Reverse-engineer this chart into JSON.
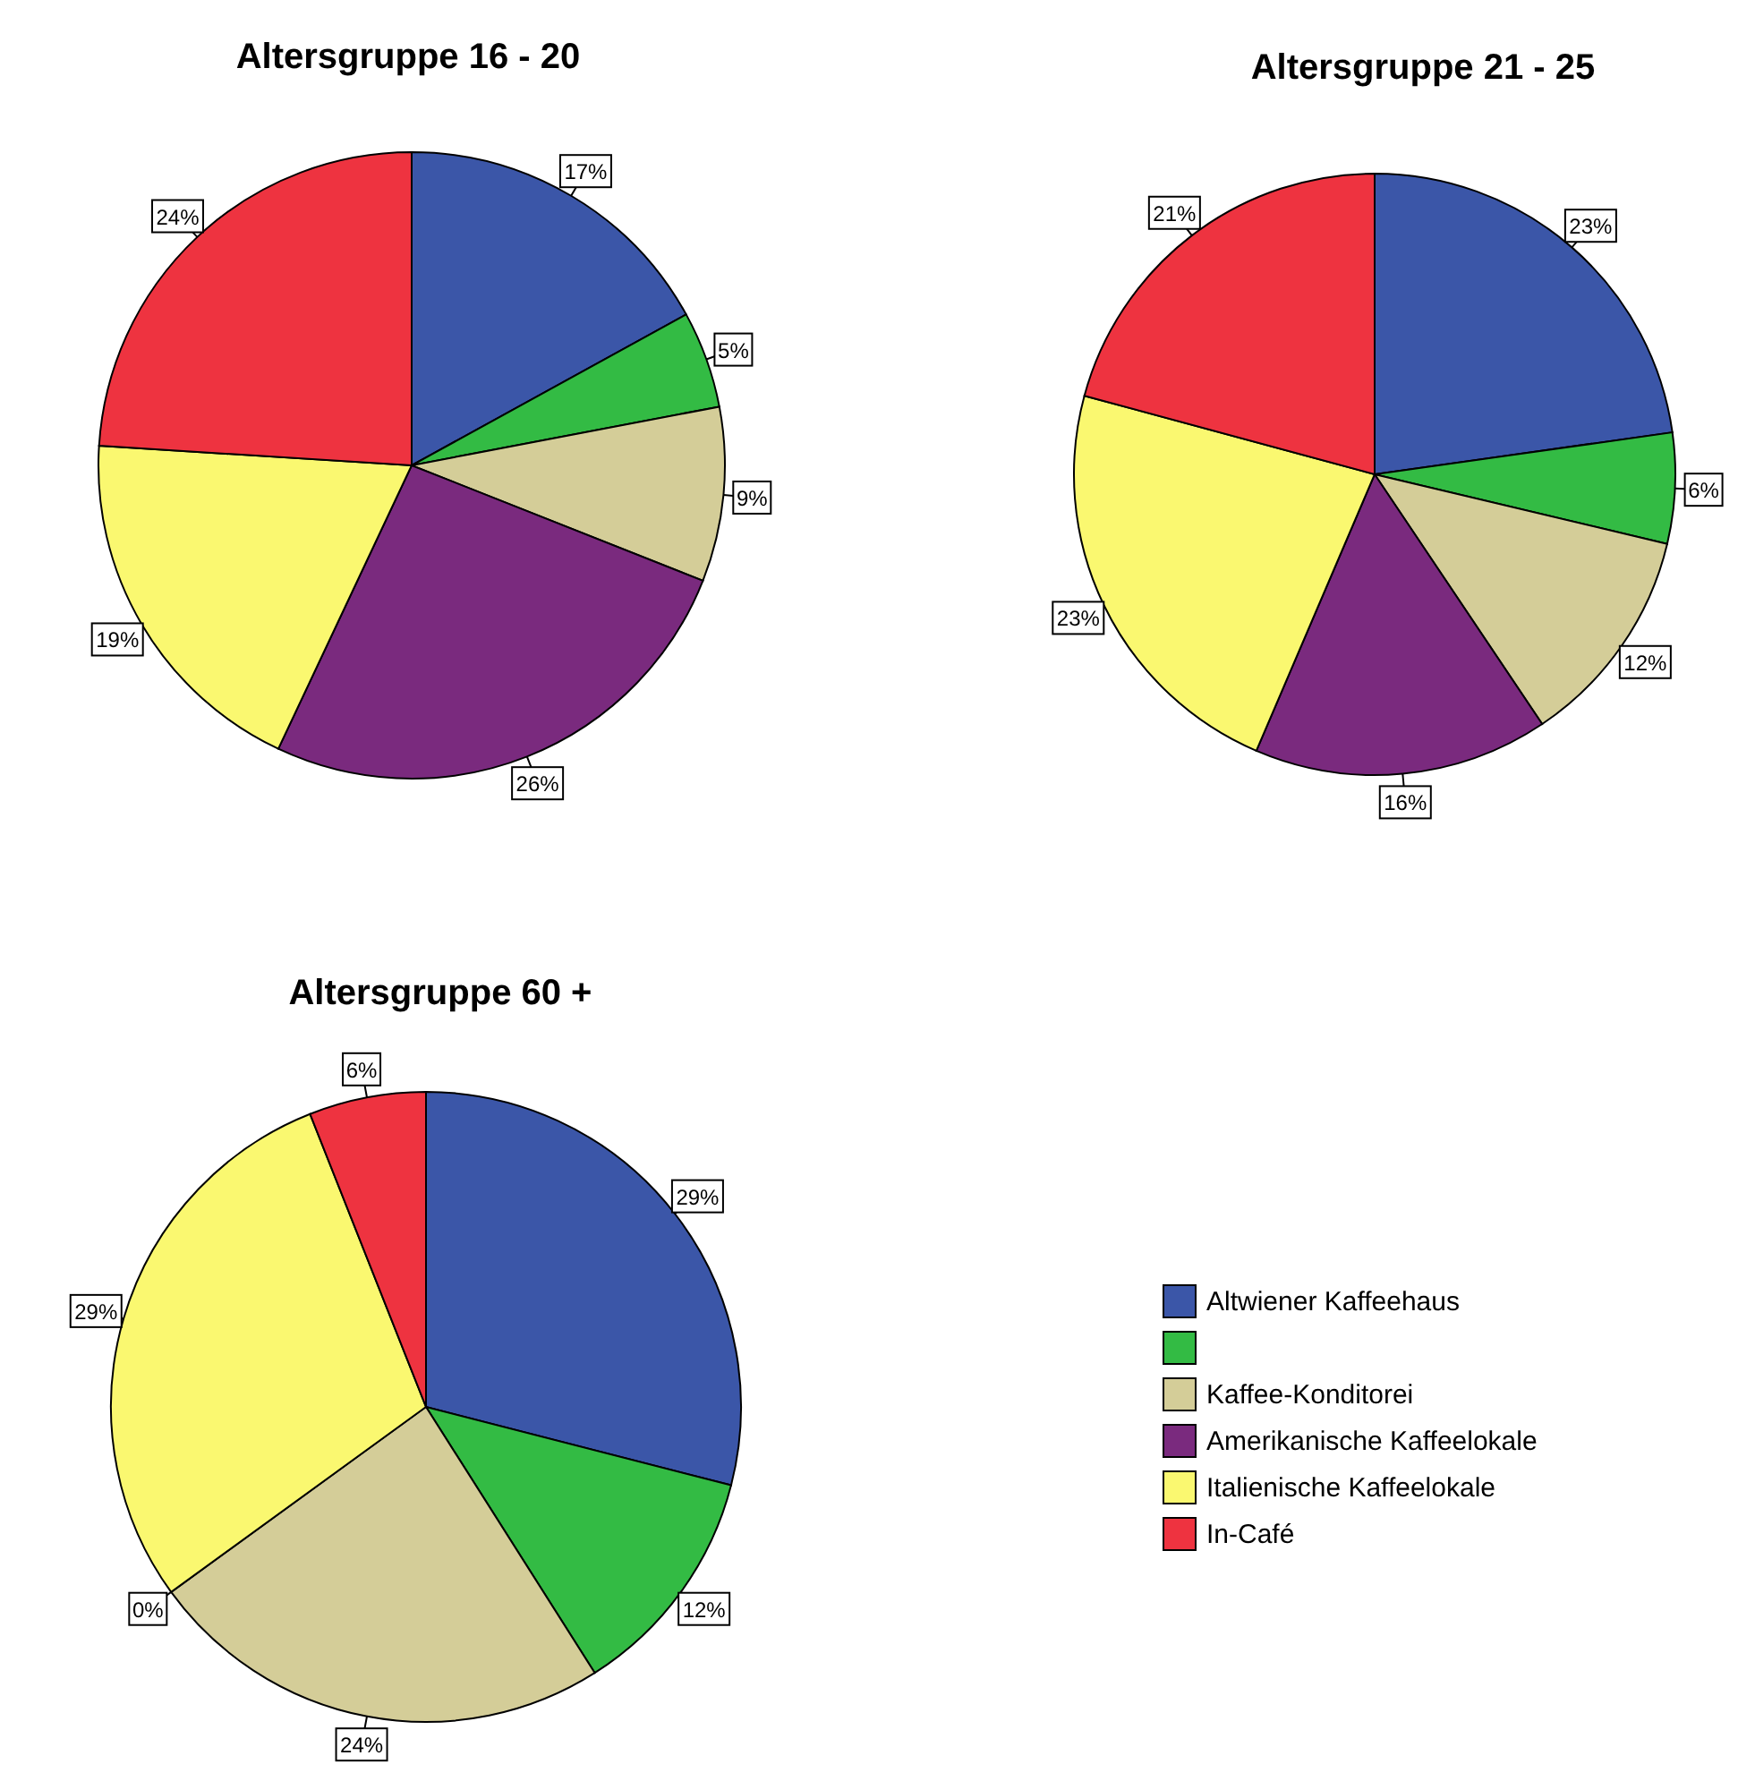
{
  "chart_data": [
    {
      "type": "pie",
      "title": "Altersgruppe 16 - 20",
      "values": [
        17,
        5,
        9,
        26,
        19,
        24
      ],
      "colors": [
        "#3b56a8",
        "#33bb44",
        "#d4cd98",
        "#7a2a7e",
        "#faf870",
        "#ee3340"
      ],
      "value_labels": [
        "17%",
        "5%",
        "9%",
        "26%",
        "19%",
        "24%"
      ]
    },
    {
      "type": "pie",
      "title": "Altersgruppe 21 - 25",
      "values": [
        23,
        6,
        12,
        16,
        23,
        21
      ],
      "colors": [
        "#3b56a8",
        "#33bb44",
        "#d4cd98",
        "#7a2a7e",
        "#faf870",
        "#ee3340"
      ],
      "value_labels": [
        "23%",
        "6%",
        "12%",
        "16%",
        "23%",
        "21%"
      ]
    },
    {
      "type": "pie",
      "title": "Altersgruppe 60 +",
      "categories": [
        "Altwiener Kaffeehaus",
        null,
        "Kaffee-Konditorei",
        "Amerikanische Kaffeelokale",
        "Italienische Kaffeelokale",
        "In-Café"
      ],
      "values": [
        29,
        12,
        24,
        0,
        29,
        6
      ],
      "colors": [
        "#3b56a8",
        "#33bb44",
        "#d4cd98",
        "#7a2a7e",
        "#faf870",
        "#ee3340"
      ],
      "value_labels": [
        "29%",
        "12%",
        "24%",
        "0%",
        "29%",
        "6%"
      ],
      "legend": "right"
    }
  ]
}
